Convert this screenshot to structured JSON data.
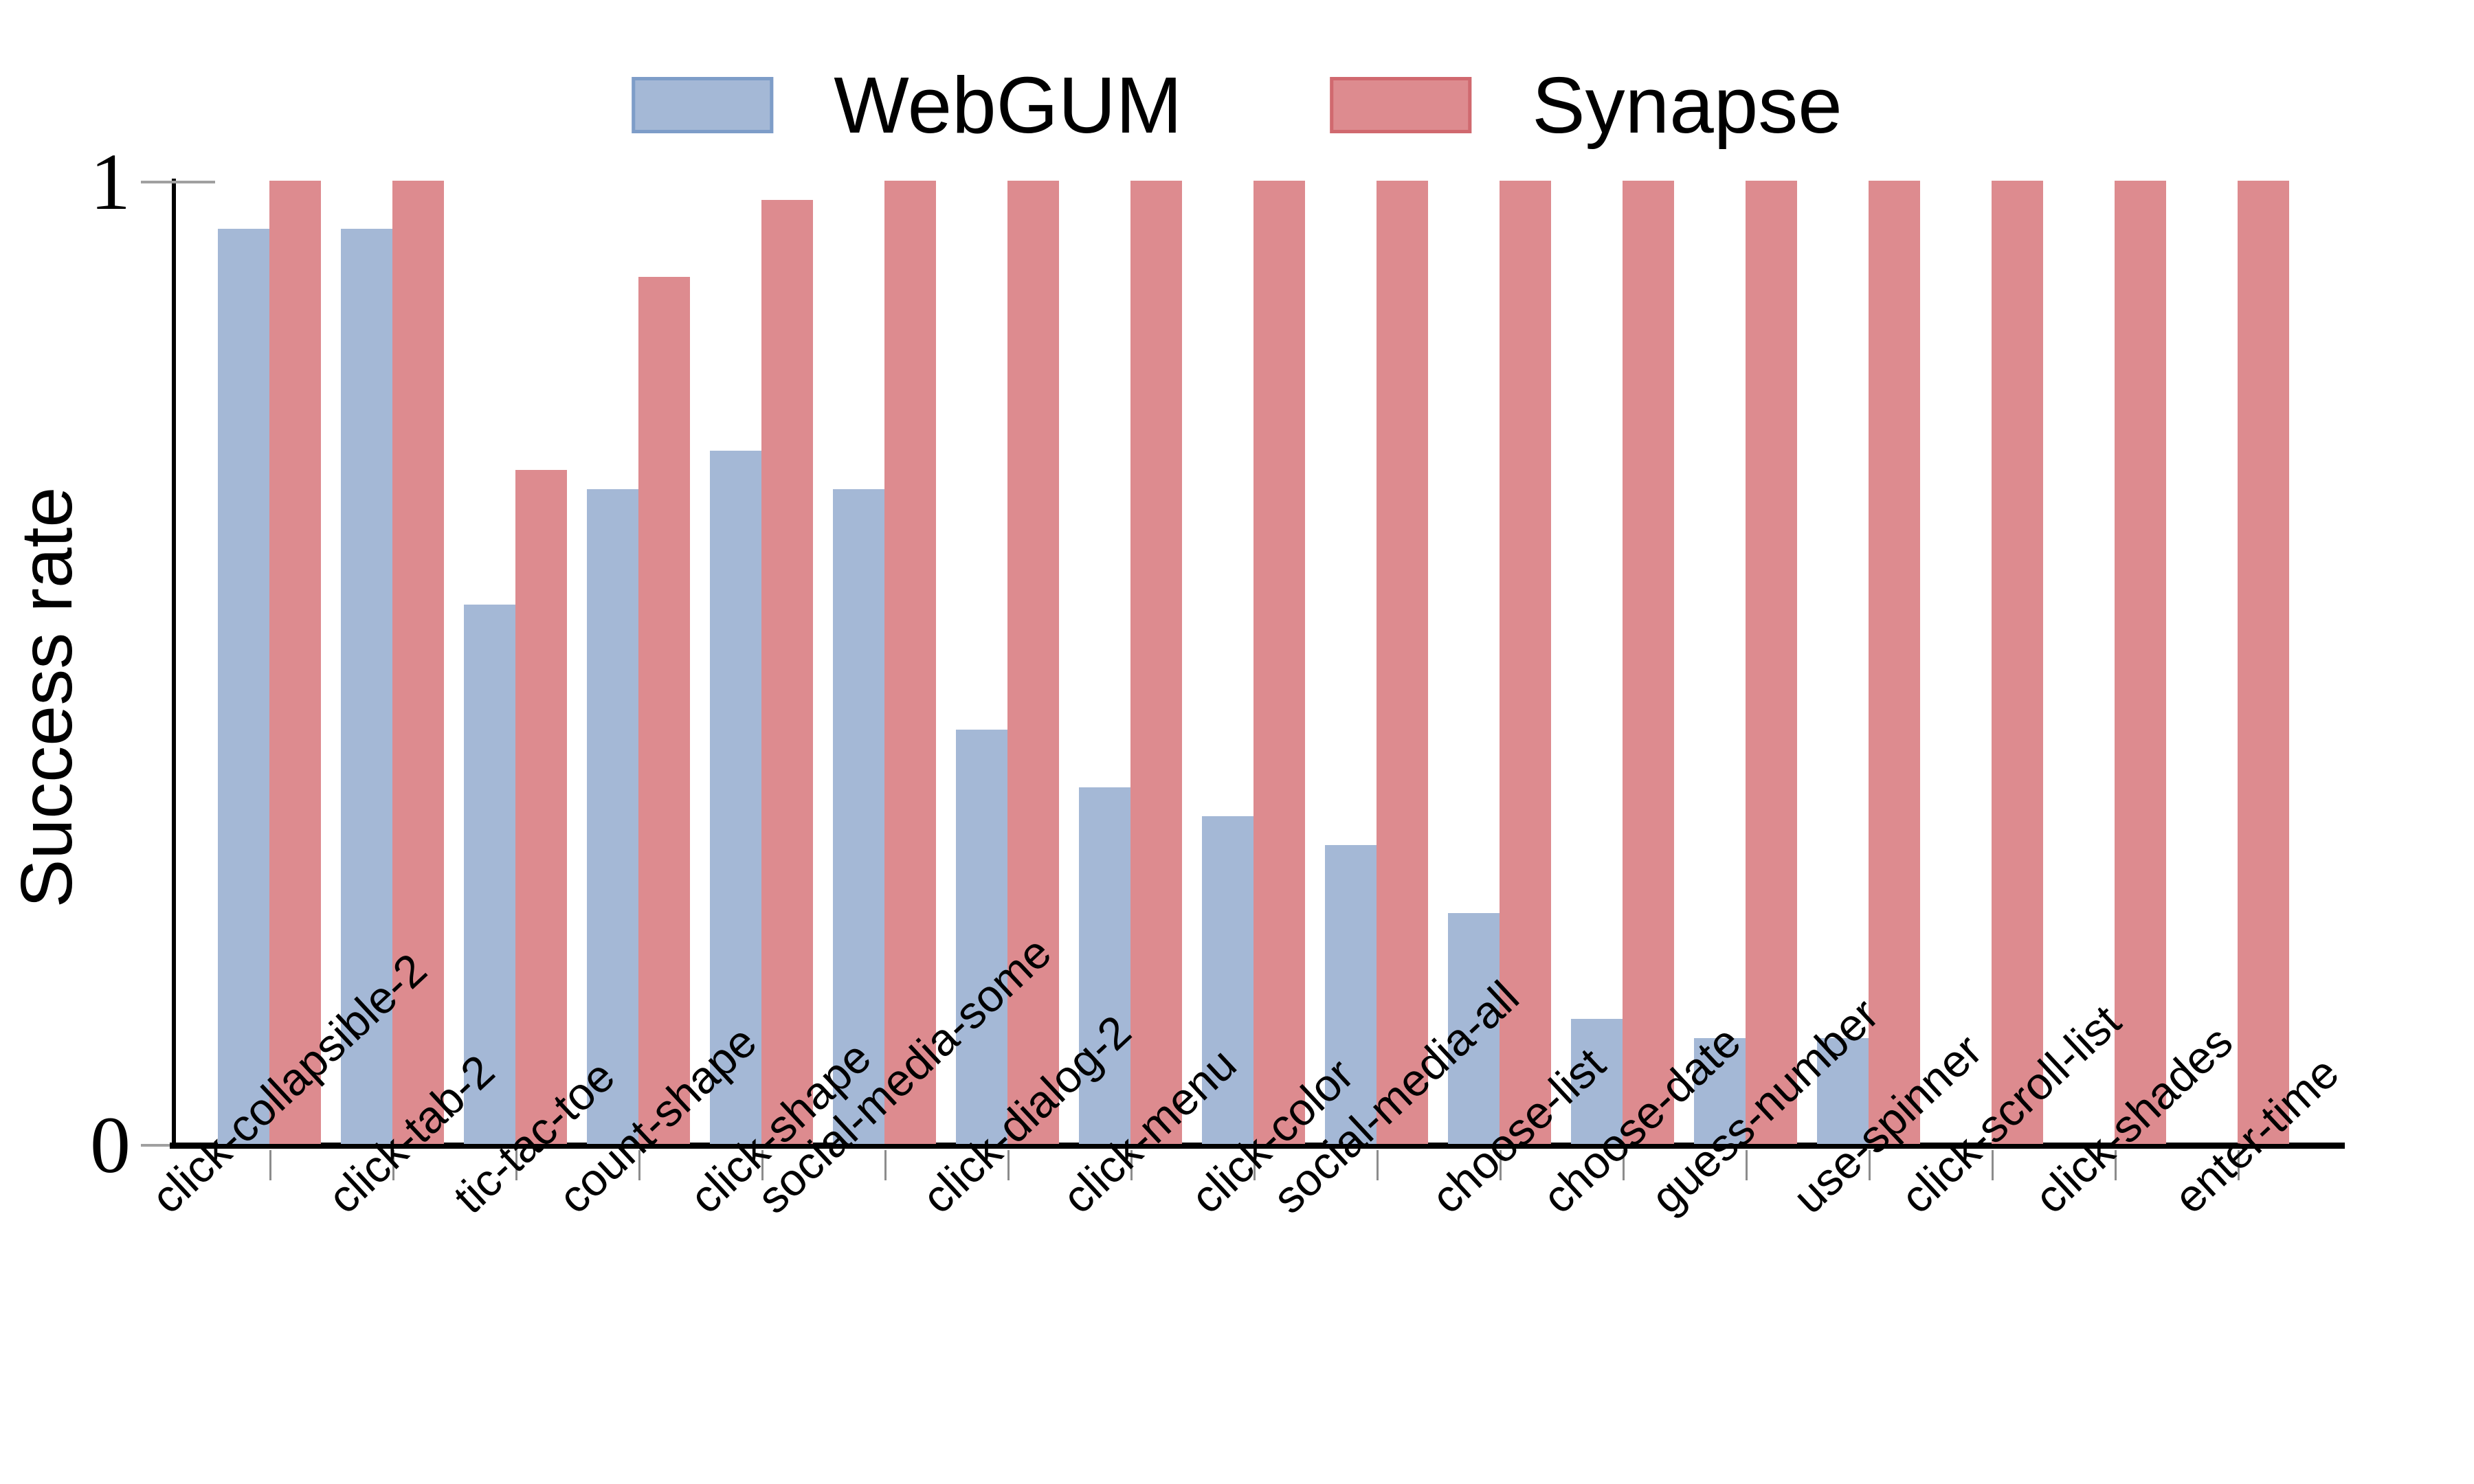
{
  "chart_data": {
    "type": "bar",
    "title": "",
    "ylabel": "Success rate",
    "xlabel": "",
    "ylim": [
      0,
      1
    ],
    "y_tick_labels": [
      "0",
      "1"
    ],
    "grid": false,
    "legend_position": "top-center",
    "x_tick_label_rotation_deg": -43,
    "categories": [
      "click-collapsible-2",
      "click-tab-2",
      "tic-tac-toe",
      "count-shape",
      "click-shape",
      "social-media-some",
      "click-dialog-2",
      "click-menu",
      "click-color",
      "social-media-all",
      "choose-list",
      "choose-date",
      "guess-number",
      "use-spinner",
      "click-scroll-list",
      "click-shades",
      "enter-time"
    ],
    "series": [
      {
        "name": "WebGUM",
        "color": "#a4b8d6",
        "edge_color": "#7e9dc8",
        "values": [
          0.95,
          0.95,
          0.56,
          0.68,
          0.72,
          0.68,
          0.43,
          0.37,
          0.34,
          0.31,
          0.24,
          0.13,
          0.11,
          0.11,
          0.0,
          0.0,
          0.0
        ]
      },
      {
        "name": "Synapse",
        "color": "#dd8b8f",
        "edge_color": "#d0696f",
        "values": [
          1.0,
          1.0,
          0.7,
          0.9,
          0.98,
          1.0,
          1.0,
          1.0,
          1.0,
          1.0,
          1.0,
          1.0,
          1.0,
          1.0,
          1.0,
          1.0,
          1.0
        ]
      }
    ]
  },
  "colors": {
    "axis": "#000000",
    "tick": "#8c8c8c",
    "background": "#ffffff"
  }
}
